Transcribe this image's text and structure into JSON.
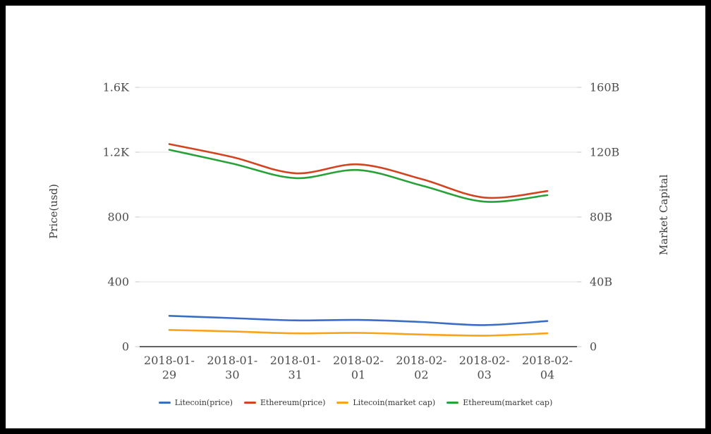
{
  "frame": {
    "border_color": "#000000",
    "background": "#ffffff"
  },
  "chart_data": {
    "type": "line",
    "title": "",
    "smooth": true,
    "grid": true,
    "legend_position": "bottom",
    "categories": [
      "2018-01-29",
      "2018-01-30",
      "2018-01-31",
      "2018-02-01",
      "2018-02-02",
      "2018-02-03",
      "2018-02-04"
    ],
    "left_axis": {
      "label": "Price(usd)",
      "tick_labels": [
        "0",
        "400",
        "800",
        "1.2K",
        "1.6K"
      ],
      "tick_values": [
        0,
        400,
        800,
        1200,
        1600
      ],
      "range": [
        0,
        1600
      ]
    },
    "right_axis": {
      "label": "Market Capital",
      "tick_labels": [
        "0",
        "40B",
        "80B",
        "120B",
        "160B"
      ],
      "tick_values": [
        0,
        40,
        80,
        120,
        160
      ],
      "range": [
        0,
        160
      ],
      "unit": "B (billions USD)"
    },
    "series": [
      {
        "name": "Litecoin(price)",
        "axis": "left",
        "color": "#3c6dc5",
        "values": [
          190,
          176,
          162,
          165,
          152,
          133,
          158
        ]
      },
      {
        "name": "Ethereum(price)",
        "axis": "left",
        "color": "#d2431f",
        "values": [
          1250,
          1170,
          1070,
          1125,
          1035,
          920,
          960
        ]
      },
      {
        "name": "Litecoin(market cap)",
        "axis": "right",
        "color": "#f9a31a",
        "values": [
          10.3,
          9.4,
          8.2,
          8.5,
          7.5,
          6.8,
          8.2
        ]
      },
      {
        "name": "Ethereum(market cap)",
        "axis": "right",
        "color": "#27a138",
        "values": [
          121.5,
          113,
          104,
          109,
          99.5,
          89.5,
          93.5
        ]
      }
    ],
    "colors": {
      "grid_line": "#e4e4e4",
      "axis_line": "#2f2f2f",
      "tick_mark": "#c9c9c9",
      "tick_text": "#4d4d4d"
    }
  }
}
